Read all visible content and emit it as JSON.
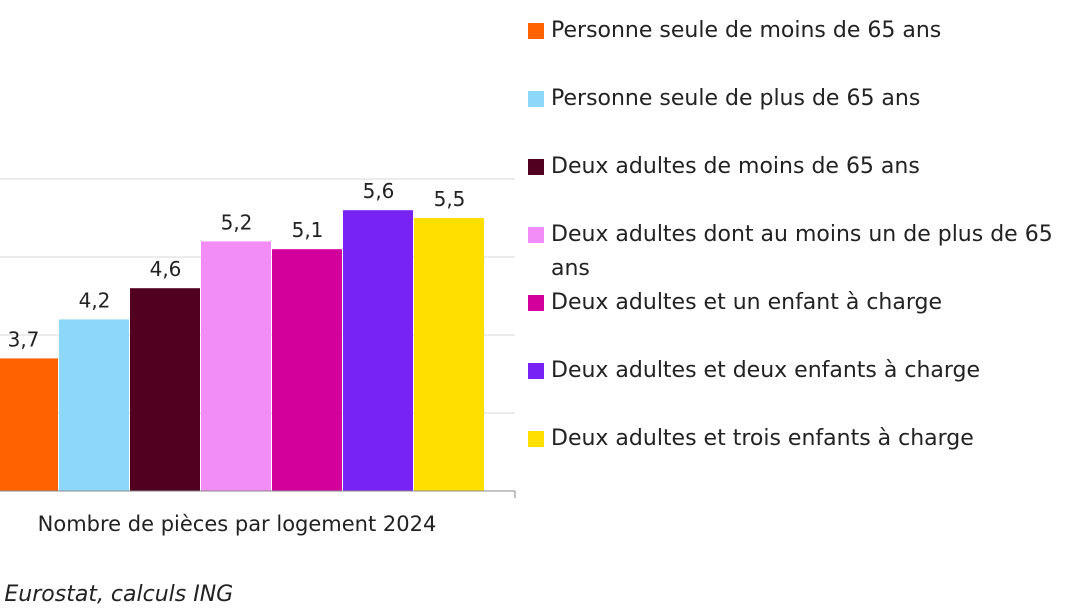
{
  "chart_data": {
    "type": "bar",
    "categories": [
      "Nombre de pièces par logement 2024"
    ],
    "series": [
      {
        "name": "Personne seule de moins de 65 ans",
        "value": 3.7,
        "label": "3,7",
        "color": "#FF6200"
      },
      {
        "name": "Personne seule de plus de 65 ans",
        "value": 4.2,
        "label": "4,2",
        "color": "#8DD8FA"
      },
      {
        "name": "Deux adultes de moins de 65 ans",
        "value": 4.6,
        "label": "4,6",
        "color": "#520020"
      },
      {
        "name": "Deux adultes dont au moins un de plus de 65 ans",
        "value": 5.2,
        "label": "5,2",
        "color": "#F28CF6"
      },
      {
        "name": "Deux adultes et un enfant à charge",
        "value": 5.1,
        "label": "5,1",
        "color": "#D3009B"
      },
      {
        "name": "Deux adultes et deux enfants à charge",
        "value": 5.6,
        "label": "5,6",
        "color": "#7723F5"
      },
      {
        "name": "Deux adultes et trois enfants à charge",
        "value": 5.5,
        "label": "5,5",
        "color": "#FFDF00"
      }
    ],
    "ylim": [
      2,
      6
    ],
    "grid": true,
    "legend_position": "right"
  },
  "source": ": Eurostat, calculs ING"
}
